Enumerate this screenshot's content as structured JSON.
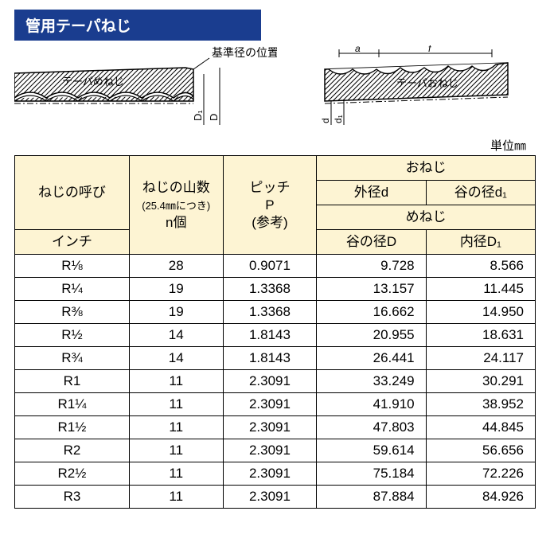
{
  "title": "管用テーパねじ",
  "diagram_left": {
    "label_top": "基準径の位置",
    "label_inside": "テーパめねじ",
    "dim1": "D₁",
    "dim2": "D"
  },
  "diagram_right": {
    "label_a": "a",
    "label_f": "f",
    "label_inside": "テーパおねじ",
    "dim1": "d",
    "dim2": "d₁"
  },
  "unit": "単位㎜",
  "table": {
    "col_widths": [
      "22%",
      "18%",
      "18%",
      "21%",
      "21%"
    ],
    "header": {
      "designation": "ねじの呼び",
      "threads": "ねじの山数",
      "threads_sub": "(25.4㎜につき)",
      "threads_n": "n個",
      "pitch": "ピッチ",
      "pitch_p": "P",
      "pitch_ref": "(参考)",
      "male": "おねじ",
      "male_d": "外径d",
      "male_d1": "谷の径d₁",
      "female": "めねじ",
      "female_D": "谷の径D",
      "female_D1": "内径D₁",
      "inch": "インチ"
    },
    "rows": [
      {
        "label": "R⅛",
        "n": "28",
        "p": "0.9071",
        "d": "9.728",
        "d1": "8.566"
      },
      {
        "label": "R¼",
        "n": "19",
        "p": "1.3368",
        "d": "13.157",
        "d1": "11.445"
      },
      {
        "label": "R⅜",
        "n": "19",
        "p": "1.3368",
        "d": "16.662",
        "d1": "14.950"
      },
      {
        "label": "R½",
        "n": "14",
        "p": "1.8143",
        "d": "20.955",
        "d1": "18.631"
      },
      {
        "label": "R¾",
        "n": "14",
        "p": "1.8143",
        "d": "26.441",
        "d1": "24.117"
      },
      {
        "label": "R1",
        "n": "11",
        "p": "2.3091",
        "d": "33.249",
        "d1": "30.291"
      },
      {
        "label": "R1¼",
        "n": "11",
        "p": "2.3091",
        "d": "41.910",
        "d1": "38.952"
      },
      {
        "label": "R1½",
        "n": "11",
        "p": "2.3091",
        "d": "47.803",
        "d1": "44.845"
      },
      {
        "label": "R2",
        "n": "11",
        "p": "2.3091",
        "d": "59.614",
        "d1": "56.656"
      },
      {
        "label": "R2½",
        "n": "11",
        "p": "2.3091",
        "d": "75.184",
        "d1": "72.226"
      },
      {
        "label": "R3",
        "n": "11",
        "p": "2.3091",
        "d": "87.884",
        "d1": "84.926"
      }
    ]
  }
}
